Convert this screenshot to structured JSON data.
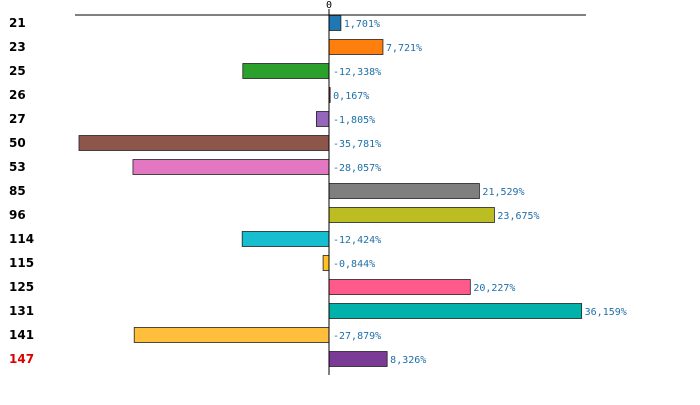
{
  "chart_data": {
    "type": "bar",
    "orientation": "horizontal",
    "title": "",
    "xlabel": "",
    "ylabel": "",
    "xlim": [
      -40,
      40
    ],
    "zero_tick_label": "0",
    "grid": false,
    "legend": "none",
    "value_suffix": "%",
    "highlight_category": "147",
    "highlight_color": "#dd0000",
    "axis_color": "#000000",
    "label_color": "#1f6fa8",
    "categories": [
      "21",
      "23",
      "25",
      "26",
      "27",
      "50",
      "53",
      "85",
      "96",
      "114",
      "115",
      "125",
      "131",
      "141",
      "147"
    ],
    "values": [
      1.701,
      7.721,
      -12.338,
      0.167,
      -1.805,
      -35.781,
      -28.057,
      21.529,
      23.675,
      -12.424,
      -0.844,
      20.227,
      36.159,
      -27.879,
      8.326
    ],
    "value_labels": [
      "1,701%",
      "7,721%",
      "-12,338%",
      "0,167%",
      "-1,805%",
      "-35,781%",
      "-28,057%",
      "21,529%",
      "23,675%",
      "-12,424%",
      "-0,844%",
      "20,227%",
      "36,159%",
      "-27,879%",
      "8,326%"
    ],
    "colors": [
      "#1f77b4",
      "#ff7f0e",
      "#2ca02c",
      "#d62728",
      "#9467bd",
      "#8c564b",
      "#e377c2",
      "#7f7f7f",
      "#bcbd22",
      "#17becf",
      "#ffc125",
      "#ff5a8c",
      "#00b2a9",
      "#ffbf3c",
      "#7b3a96"
    ]
  }
}
